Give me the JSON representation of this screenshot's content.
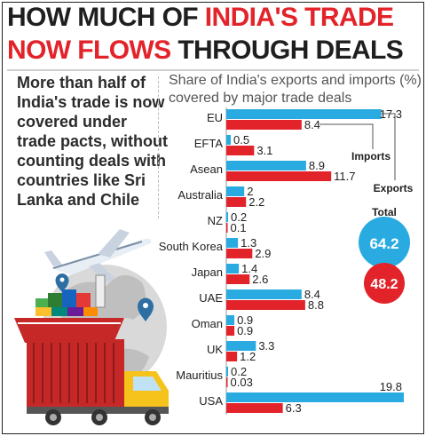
{
  "headline": {
    "line1_dark": "HOW MUCH OF",
    "line1_red": "INDIA'S TRADE",
    "line2_red": "NOW FLOWS",
    "line2_dark": "THROUGH DEALS"
  },
  "intro_text": "More than half of India's trade is now covered under trade pacts, without counting deals with countries like Sri Lanka and Chile",
  "colors": {
    "exports": "#29abe2",
    "imports": "#e3232a",
    "headline_red": "#e3232a",
    "text": "#1f1f1f"
  },
  "chart_data": {
    "type": "bar",
    "title": "Share of India's exports and imports (%) covered by major trade deals",
    "categories": [
      "EU",
      "EFTA",
      "Asean",
      "Australia",
      "NZ",
      "South Korea",
      "Japan",
      "UAE",
      "Oman",
      "UK",
      "Mauritius",
      "USA"
    ],
    "series": [
      {
        "name": "Exports",
        "color": "#29abe2",
        "values": [
          17.3,
          0.5,
          8.9,
          2,
          0.2,
          1.3,
          1.4,
          8.4,
          0.9,
          3.3,
          0.2,
          19.8
        ],
        "labels": [
          "17.3",
          "0.5",
          "8.9",
          "2",
          "0.2",
          "1.3",
          "1.4",
          "8.4",
          "0.9",
          "3.3",
          "0.2",
          "19.8"
        ]
      },
      {
        "name": "Imports",
        "color": "#e3232a",
        "values": [
          8.4,
          3.1,
          11.7,
          2.2,
          0.1,
          2.9,
          2.6,
          8.8,
          0.9,
          1.2,
          0.03,
          6.3
        ],
        "labels": [
          "8.4",
          "3.1",
          "11.7",
          "2.2",
          "0.1",
          "2.9",
          "2.6",
          "8.8",
          "0.9",
          "1.2",
          "0.03",
          "6.3"
        ]
      }
    ],
    "xlim": [
      0,
      19.8
    ],
    "orientation": "horizontal",
    "annotations": {
      "imports_label": "Imports",
      "exports_label": "Exports"
    },
    "totals": {
      "label": "Total",
      "exports": "64.2",
      "imports": "48.2"
    }
  }
}
